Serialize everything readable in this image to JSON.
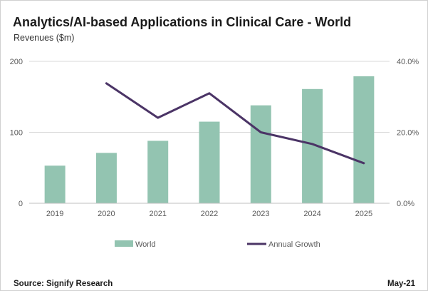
{
  "header": {
    "title": "Analytics/AI-based Applications in Clinical Care - World",
    "subtitle": "Revenues ($m)"
  },
  "footer": {
    "source": "Source: Signify Research",
    "date": "May-21"
  },
  "colors": {
    "bar": "#93c4b1",
    "line": "#4b3466",
    "grid": "#d9d9d9",
    "axis": "#bfbfbf"
  },
  "chart_data": {
    "type": "bar",
    "categories": [
      "2019",
      "2020",
      "2021",
      "2022",
      "2023",
      "2024",
      "2025"
    ],
    "series": [
      {
        "name": "World",
        "type": "bar",
        "axis": "left",
        "values": [
          53,
          71,
          88,
          115,
          138,
          161,
          179
        ]
      },
      {
        "name": "Annual Growth",
        "type": "line",
        "axis": "right",
        "values": [
          null,
          33.8,
          24.1,
          31.0,
          20.0,
          16.7,
          11.3
        ]
      }
    ],
    "y_left": {
      "min": 0,
      "max": 200,
      "ticks": [
        "0",
        "100",
        "200"
      ],
      "tick_values": [
        0,
        100,
        200
      ]
    },
    "y_right": {
      "min": 0,
      "max": 40,
      "ticks": [
        "0.0%",
        "20.0%",
        "40.0%"
      ],
      "tick_values": [
        0,
        20,
        40
      ]
    },
    "grid": true,
    "legend": {
      "position": "bottom",
      "labels": [
        "World",
        "Annual Growth"
      ]
    }
  }
}
